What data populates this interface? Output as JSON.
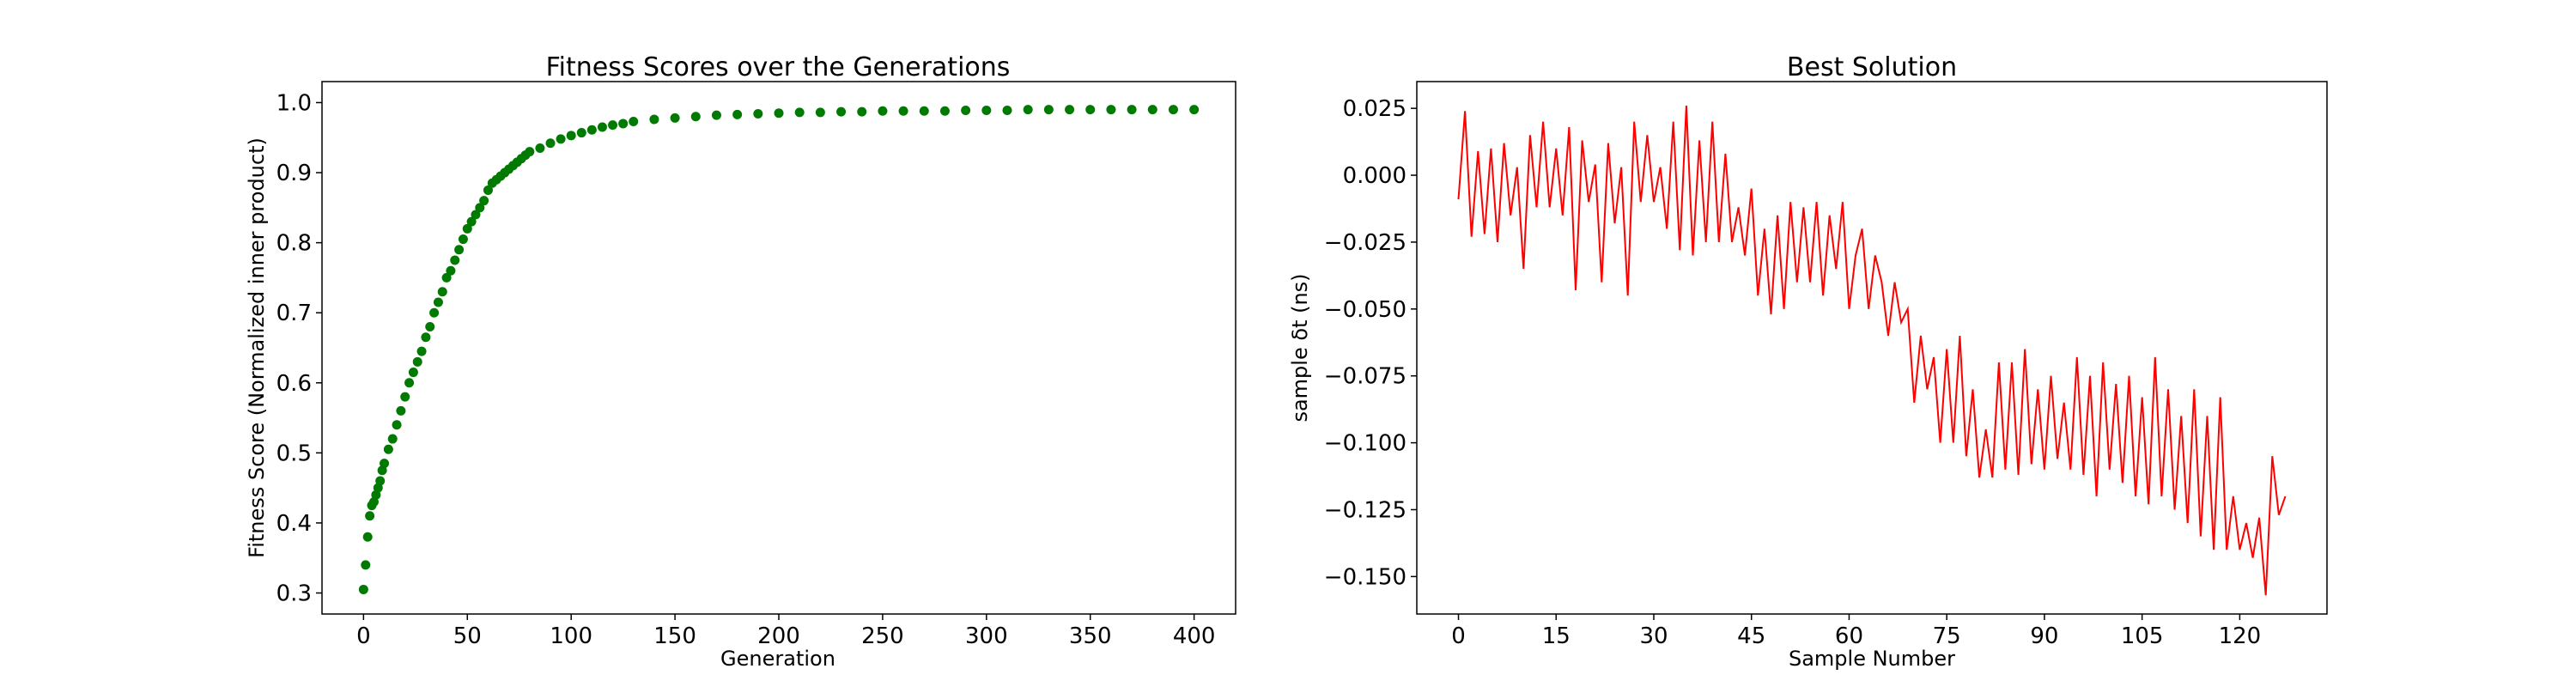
{
  "chart_data": [
    {
      "type": "scatter",
      "title": "Fitness Scores over the Generations",
      "xlabel": "Generation",
      "ylabel": "Fitness Score (Normalized inner product)",
      "xlim": [
        -20,
        420
      ],
      "ylim": [
        0.27,
        1.03
      ],
      "x_ticks": [
        0,
        50,
        100,
        150,
        200,
        250,
        300,
        350,
        400
      ],
      "y_ticks": [
        0.3,
        0.4,
        0.5,
        0.6,
        0.7,
        0.8,
        0.9,
        1.0
      ],
      "y_tick_labels": [
        "0.3",
        "0.4",
        "0.5",
        "0.6",
        "0.7",
        "0.8",
        "0.9",
        "1.0"
      ],
      "grid": false,
      "color": "#007a00",
      "series": [
        {
          "x": [
            0,
            1,
            2,
            3,
            4,
            5,
            6,
            7,
            8,
            9,
            10,
            12,
            14,
            16,
            18,
            20,
            22,
            24,
            26,
            28,
            30,
            32,
            34,
            36,
            38,
            40,
            42,
            44,
            46,
            48,
            50,
            52,
            54,
            56,
            58,
            60,
            62,
            64,
            66,
            68,
            70,
            72,
            74,
            76,
            78,
            80,
            85,
            90,
            95,
            100,
            105,
            110,
            115,
            120,
            125,
            130,
            140,
            150,
            160,
            170,
            180,
            190,
            200,
            210,
            220,
            230,
            240,
            250,
            260,
            270,
            280,
            290,
            300,
            310,
            320,
            330,
            340,
            350,
            360,
            370,
            380,
            390,
            400
          ],
          "y": [
            0.305,
            0.34,
            0.38,
            0.41,
            0.425,
            0.43,
            0.44,
            0.45,
            0.46,
            0.475,
            0.485,
            0.505,
            0.52,
            0.54,
            0.56,
            0.58,
            0.6,
            0.615,
            0.63,
            0.645,
            0.665,
            0.68,
            0.7,
            0.715,
            0.73,
            0.75,
            0.76,
            0.775,
            0.79,
            0.805,
            0.82,
            0.83,
            0.84,
            0.85,
            0.86,
            0.875,
            0.885,
            0.89,
            0.895,
            0.9,
            0.905,
            0.91,
            0.915,
            0.92,
            0.925,
            0.93,
            0.935,
            0.942,
            0.948,
            0.953,
            0.957,
            0.961,
            0.965,
            0.968,
            0.97,
            0.973,
            0.976,
            0.978,
            0.98,
            0.982,
            0.983,
            0.984,
            0.985,
            0.986,
            0.986,
            0.987,
            0.987,
            0.988,
            0.988,
            0.988,
            0.988,
            0.989,
            0.989,
            0.989,
            0.99,
            0.99,
            0.99,
            0.99,
            0.99,
            0.99,
            0.99,
            0.99,
            0.99
          ]
        }
      ]
    },
    {
      "type": "line",
      "title": "Best Solution",
      "xlabel": "Sample Number",
      "ylabel": "sample δt (ns)",
      "xlim": [
        -6.4,
        133.4
      ],
      "ylim": [
        -0.164,
        0.035
      ],
      "x_ticks": [
        0,
        15,
        30,
        45,
        60,
        75,
        90,
        105,
        120
      ],
      "y_ticks": [
        0.025,
        0.0,
        -0.025,
        -0.05,
        -0.075,
        -0.1,
        -0.125,
        -0.15
      ],
      "y_tick_labels": [
        "0.025",
        "0.000",
        "−0.025",
        "−0.050",
        "−0.075",
        "−0.100",
        "−0.125",
        "−0.150"
      ],
      "grid": false,
      "color": "#ff0000",
      "series": [
        {
          "x": [
            0,
            1,
            2,
            3,
            4,
            5,
            6,
            7,
            8,
            9,
            10,
            11,
            12,
            13,
            14,
            15,
            16,
            17,
            18,
            19,
            20,
            21,
            22,
            23,
            24,
            25,
            26,
            27,
            28,
            29,
            30,
            31,
            32,
            33,
            34,
            35,
            36,
            37,
            38,
            39,
            40,
            41,
            42,
            43,
            44,
            45,
            46,
            47,
            48,
            49,
            50,
            51,
            52,
            53,
            54,
            55,
            56,
            57,
            58,
            59,
            60,
            61,
            62,
            63,
            64,
            65,
            66,
            67,
            68,
            69,
            70,
            71,
            72,
            73,
            74,
            75,
            76,
            77,
            78,
            79,
            80,
            81,
            82,
            83,
            84,
            85,
            86,
            87,
            88,
            89,
            90,
            91,
            92,
            93,
            94,
            95,
            96,
            97,
            98,
            99,
            100,
            101,
            102,
            103,
            104,
            105,
            106,
            107,
            108,
            109,
            110,
            111,
            112,
            113,
            114,
            115,
            116,
            117,
            118,
            119,
            120,
            121,
            122,
            123,
            124,
            125,
            126,
            127
          ],
          "y": [
            -0.009,
            0.024,
            -0.023,
            0.009,
            -0.022,
            0.01,
            -0.025,
            0.012,
            -0.015,
            0.003,
            -0.035,
            0.015,
            -0.012,
            0.02,
            -0.012,
            0.01,
            -0.015,
            0.018,
            -0.043,
            0.013,
            -0.01,
            0.004,
            -0.04,
            0.012,
            -0.018,
            0.003,
            -0.045,
            0.02,
            -0.01,
            0.015,
            -0.01,
            0.003,
            -0.02,
            0.02,
            -0.028,
            0.026,
            -0.03,
            0.013,
            -0.025,
            0.02,
            -0.025,
            0.008,
            -0.025,
            -0.012,
            -0.03,
            -0.005,
            -0.045,
            -0.02,
            -0.052,
            -0.015,
            -0.05,
            -0.01,
            -0.04,
            -0.012,
            -0.04,
            -0.01,
            -0.045,
            -0.015,
            -0.035,
            -0.01,
            -0.05,
            -0.03,
            -0.02,
            -0.05,
            -0.03,
            -0.04,
            -0.06,
            -0.04,
            -0.055,
            -0.05,
            -0.085,
            -0.06,
            -0.08,
            -0.068,
            -0.1,
            -0.065,
            -0.1,
            -0.06,
            -0.105,
            -0.08,
            -0.113,
            -0.095,
            -0.113,
            -0.07,
            -0.11,
            -0.07,
            -0.112,
            -0.065,
            -0.108,
            -0.08,
            -0.11,
            -0.075,
            -0.106,
            -0.085,
            -0.11,
            -0.068,
            -0.112,
            -0.075,
            -0.12,
            -0.07,
            -0.11,
            -0.078,
            -0.115,
            -0.075,
            -0.12,
            -0.083,
            -0.123,
            -0.068,
            -0.12,
            -0.08,
            -0.125,
            -0.09,
            -0.13,
            -0.08,
            -0.135,
            -0.09,
            -0.14,
            -0.083,
            -0.14,
            -0.12,
            -0.14,
            -0.13,
            -0.143,
            -0.128,
            -0.157,
            -0.105,
            -0.127,
            -0.12
          ]
        }
      ]
    }
  ]
}
